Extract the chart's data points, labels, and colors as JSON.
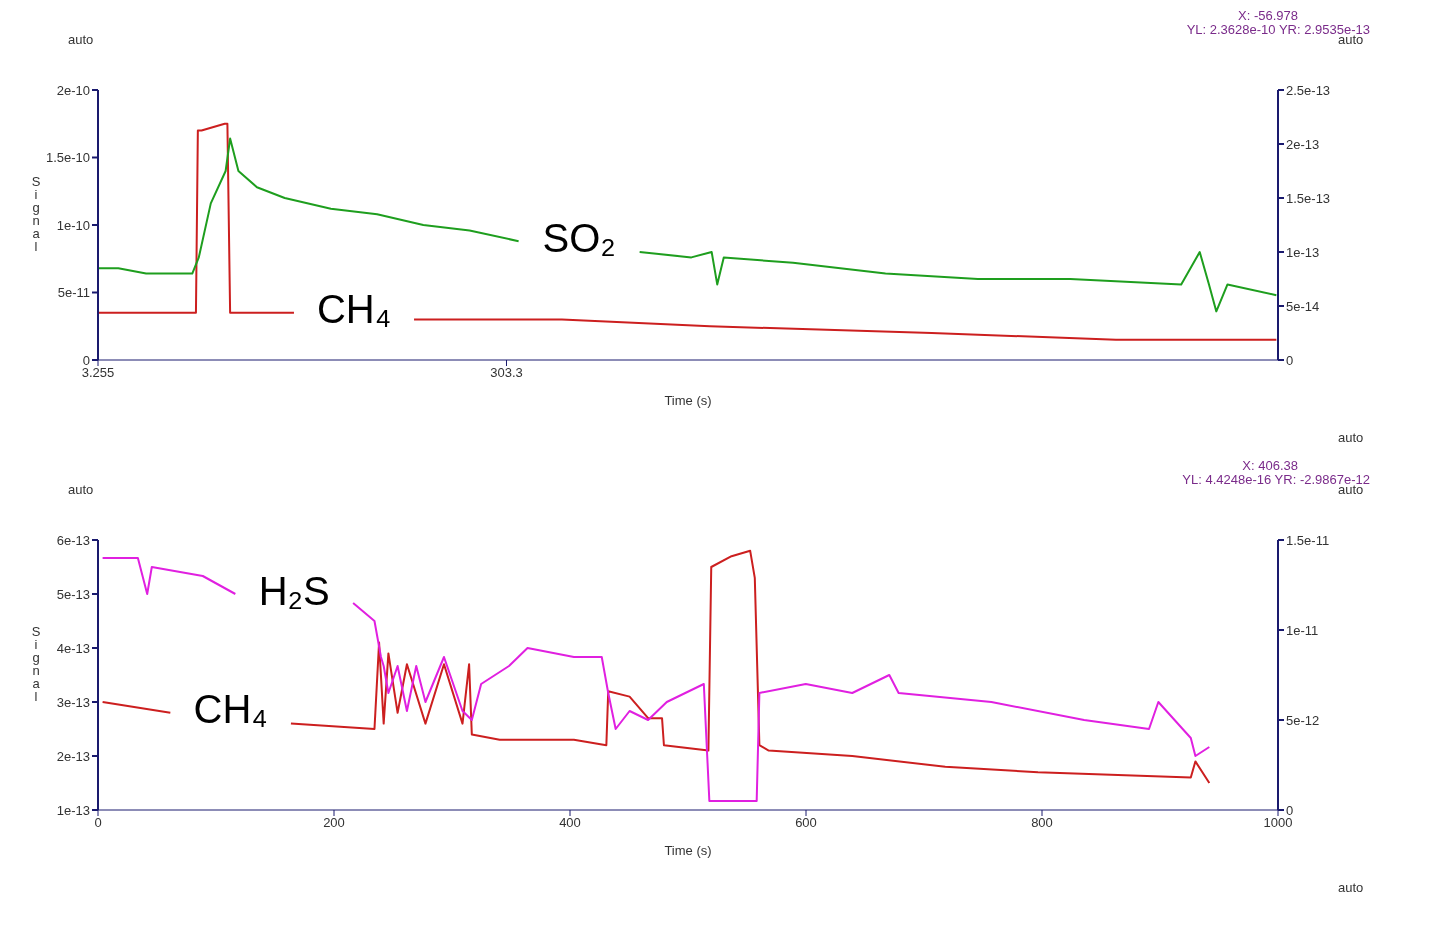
{
  "chart_data": [
    {
      "type": "line",
      "xlabel": "Time (s)",
      "ylabel": "Signal",
      "xlim": [
        3.255,
        870
      ],
      "xticks": [
        3.255,
        303.3
      ],
      "ylim": [
        0,
        2e-10
      ],
      "yticks": [
        0,
        5e-11,
        1e-10,
        1.5e-10,
        2e-10
      ],
      "y2lim": [
        0,
        2.5e-13
      ],
      "y2ticks": [
        0,
        5e-14,
        1e-13,
        1.5e-13,
        2e-13,
        2.5e-13
      ],
      "annotations": [
        "auto",
        "auto",
        "auto",
        "X: -56.978",
        "YL: 2.3628e-10 YR: 2.9535e-13"
      ],
      "series": [
        {
          "name": "CH₄",
          "color": "#cc1f1f",
          "x": [
            3.3,
            75.2,
            76.6,
            79.3,
            96.3,
            98.3,
            100.3,
            106.4,
            147.2,
            150,
            200,
            230,
            235.4,
            344,
            452.7,
            615.6,
            751,
            868.8
          ],
          "values": [
            3.5e-11,
            3.5e-11,
            1.7e-10,
            1.7e-10,
            1.75e-10,
            1.75e-10,
            3.5e-11,
            3.5e-11,
            3.5e-11,
            null,
            null,
            null,
            3e-11,
            3e-11,
            2.5e-11,
            2e-11,
            1.5e-11,
            1.5e-11
          ]
        },
        {
          "name": "SO₂",
          "color": "#1e9e1e",
          "axis": "y2",
          "x": [
            3.3,
            18.2,
            38.6,
            72.5,
            77.3,
            86.1,
            97.0,
            100.3,
            106.4,
            120.0,
            140.4,
            174.3,
            208.3,
            242.2,
            276.2,
            312.2,
            350,
            380,
            401.1,
            439.1,
            454.0,
            458.1,
            462.9,
            513.8,
            581.7,
            649.6,
            717.4,
            798.9,
            812.5,
            819.3,
            824.7,
            832.9,
            868.8
          ],
          "values": [
            8.5e-14,
            8.5e-14,
            8e-14,
            8e-14,
            9.5e-14,
            1.45e-13,
            1.75e-13,
            2.05e-13,
            1.75e-13,
            1.6e-13,
            1.5e-13,
            1.4e-13,
            1.35e-13,
            1.25e-13,
            1.2e-13,
            1.1e-13,
            null,
            null,
            1e-13,
            9.5e-14,
            1e-13,
            7e-14,
            9.5e-14,
            9e-14,
            8e-14,
            7.5e-14,
            7.5e-14,
            7e-14,
            1e-13,
            7e-14,
            4.5e-14,
            7e-14,
            6e-14
          ]
        }
      ]
    },
    {
      "type": "line",
      "xlabel": "Time (s)",
      "ylabel": "Signal",
      "xlim": [
        0,
        1000
      ],
      "xticks": [
        0,
        200,
        400,
        600,
        800,
        1000
      ],
      "ylim": [
        1e-13,
        6e-13
      ],
      "yticks": [
        1e-13,
        2e-13,
        3e-13,
        4e-13,
        5e-13,
        6e-13
      ],
      "y2lim": [
        0,
        1.5e-11
      ],
      "y2ticks": [
        0,
        5e-12,
        1e-11,
        1.5e-11
      ],
      "annotations": [
        "auto",
        "auto",
        "auto",
        "X: 406.38",
        "YL: 4.4248e-16 YR: -2.9867e-12"
      ],
      "series": [
        {
          "name": "CH₄",
          "color": "#cc1f1f",
          "x": [
            3.9,
            61.3,
            100,
            150,
            163.5,
            234.3,
            238.2,
            242.1,
            246.1,
            253.9,
            261.8,
            277.5,
            293.2,
            308.9,
            314.5,
            316.8,
            340.4,
            403.3,
            430.8,
            432.4,
            450.5,
            466.2,
            478,
            479.6,
            517.3,
            519.7,
            536.9,
            552.7,
            556.6,
            560.5,
            568.4,
            639.2,
            718,
            796.6,
            926.1,
            930,
            941.8
          ],
          "values": [
            3e-13,
            2.8e-13,
            null,
            null,
            2.6e-13,
            2.5e-13,
            4.1e-13,
            2.6e-13,
            3.9e-13,
            2.8e-13,
            3.7e-13,
            2.6e-13,
            3.7e-13,
            2.6e-13,
            3.7e-13,
            2.4e-13,
            2.3e-13,
            2.3e-13,
            2.2e-13,
            3.2e-13,
            3.1e-13,
            2.7e-13,
            2.7e-13,
            2.2e-13,
            2.1e-13,
            5.5e-13,
            5.7e-13,
            5.8e-13,
            5.3e-13,
            2.2e-13,
            2.1e-13,
            2e-13,
            1.8e-13,
            1.7e-13,
            1.6e-13,
            1.9e-13,
            1.5e-13
          ]
        },
        {
          "name": "H₂S",
          "color": "#e020e0",
          "axis": "y2",
          "x": [
            3.9,
            33.8,
            41.7,
            45.6,
            88.8,
            116.4,
            140,
            200,
            216.2,
            234.3,
            239.8,
            242.1,
            246.1,
            253.9,
            261.8,
            269.7,
            277.5,
            293.2,
            308.9,
            316.8,
            324.7,
            348.3,
            364,
            403.3,
            426.9,
            432.4,
            438.7,
            450.5,
            466.2,
            482,
            513.4,
            518.1,
            536.9,
            558.2,
            560.5,
            599.8,
            639.2,
            670.6,
            678.5,
            757.1,
            835.7,
            890.7,
            898.6,
            926.1,
            930,
            941.8
          ],
          "values": [
            1.4e-11,
            1.4e-11,
            1.2e-11,
            1.35e-11,
            1.3e-11,
            1.2e-11,
            null,
            null,
            1.15e-11,
            1.05e-11,
            8.5e-12,
            8e-12,
            6.5e-12,
            8e-12,
            5.5e-12,
            8e-12,
            6e-12,
            8.5e-12,
            5.5e-12,
            5e-12,
            7e-12,
            8e-12,
            9e-12,
            8.5e-12,
            8.5e-12,
            6.5e-12,
            4.5e-12,
            5.5e-12,
            5e-12,
            6e-12,
            7e-12,
            5e-13,
            5e-13,
            5e-13,
            6.5e-12,
            7e-12,
            6.5e-12,
            7.5e-12,
            6.5e-12,
            6e-12,
            5e-12,
            4.5e-12,
            6e-12,
            4e-12,
            3e-12,
            3.5e-12
          ]
        }
      ]
    }
  ]
}
